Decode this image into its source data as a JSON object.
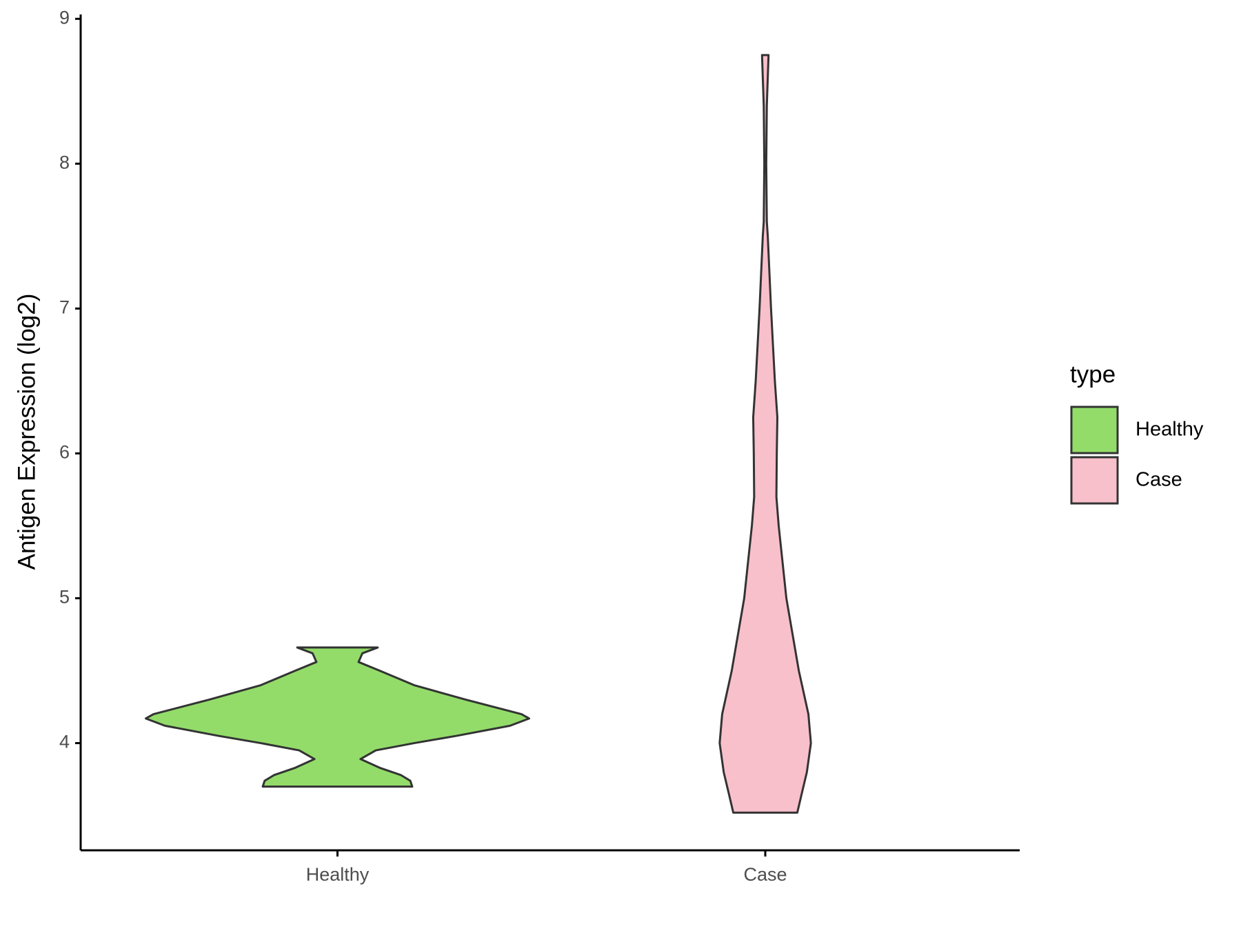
{
  "chart_data": {
    "type": "violin",
    "y_label": "Antigen Expression (log2)",
    "categories": [
      "Healthy",
      "Case"
    ],
    "legend_title": "type",
    "ylim": [
      3.26,
      9.03
    ],
    "yticks": [
      4,
      5,
      6,
      7,
      8,
      9
    ],
    "series": [
      {
        "name": "Healthy",
        "color": "#93dc6a",
        "y": [
          4.66,
          4.62,
          4.56,
          4.5,
          4.4,
          4.3,
          4.2,
          4.17,
          4.12,
          4.05,
          4.0,
          3.95,
          3.89,
          3.83,
          3.78,
          3.74,
          3.7
        ],
        "density": [
          0.21,
          0.13,
          0.11,
          0.22,
          0.4,
          0.67,
          0.96,
          1.0,
          0.9,
          0.62,
          0.4,
          0.2,
          0.12,
          0.22,
          0.33,
          0.38,
          0.39
        ]
      },
      {
        "name": "Case",
        "color": "#f8c0cb",
        "y": [
          8.75,
          8.4,
          8.0,
          7.6,
          7.5,
          7.0,
          6.5,
          6.25,
          6.0,
          5.7,
          5.5,
          5.0,
          4.5,
          4.2,
          4.0,
          3.8,
          3.65,
          3.52
        ],
        "density": [
          0.017,
          0.008,
          0.005,
          0.008,
          0.013,
          0.03,
          0.05,
          0.063,
          0.06,
          0.058,
          0.07,
          0.11,
          0.175,
          0.225,
          0.238,
          0.217,
          0.19,
          0.167
        ]
      }
    ]
  }
}
